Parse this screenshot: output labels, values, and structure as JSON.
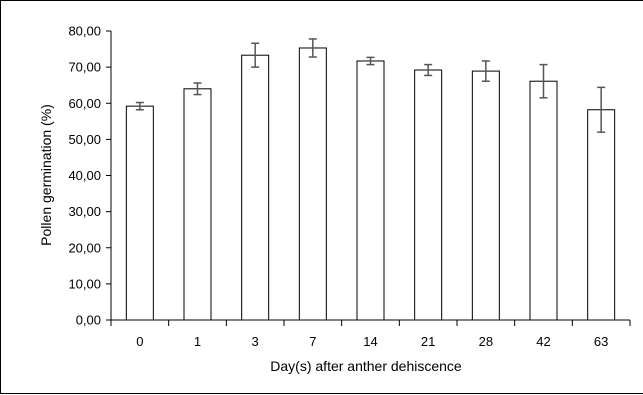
{
  "chart_data": {
    "type": "bar",
    "title": "",
    "xlabel": "Day(s) after anther dehiscence",
    "ylabel": "Pollen germination (%)",
    "ylim": [
      0,
      80
    ],
    "yticks": [
      "0,00",
      "10,00",
      "20,00",
      "30,00",
      "40,00",
      "50,00",
      "60,00",
      "70,00",
      "80,00"
    ],
    "categories": [
      "0",
      "1",
      "3",
      "7",
      "14",
      "21",
      "28",
      "42",
      "63"
    ],
    "values": [
      59.2,
      64.0,
      73.3,
      75.3,
      71.7,
      69.2,
      68.9,
      66.1,
      58.2
    ],
    "errors": [
      1.0,
      1.6,
      3.3,
      2.5,
      1.0,
      1.5,
      2.8,
      4.6,
      6.2
    ],
    "bar_fill": "#ffffff",
    "bar_stroke": "#000000",
    "error_bar_color": "#555555",
    "grid": false,
    "legend": "none"
  }
}
